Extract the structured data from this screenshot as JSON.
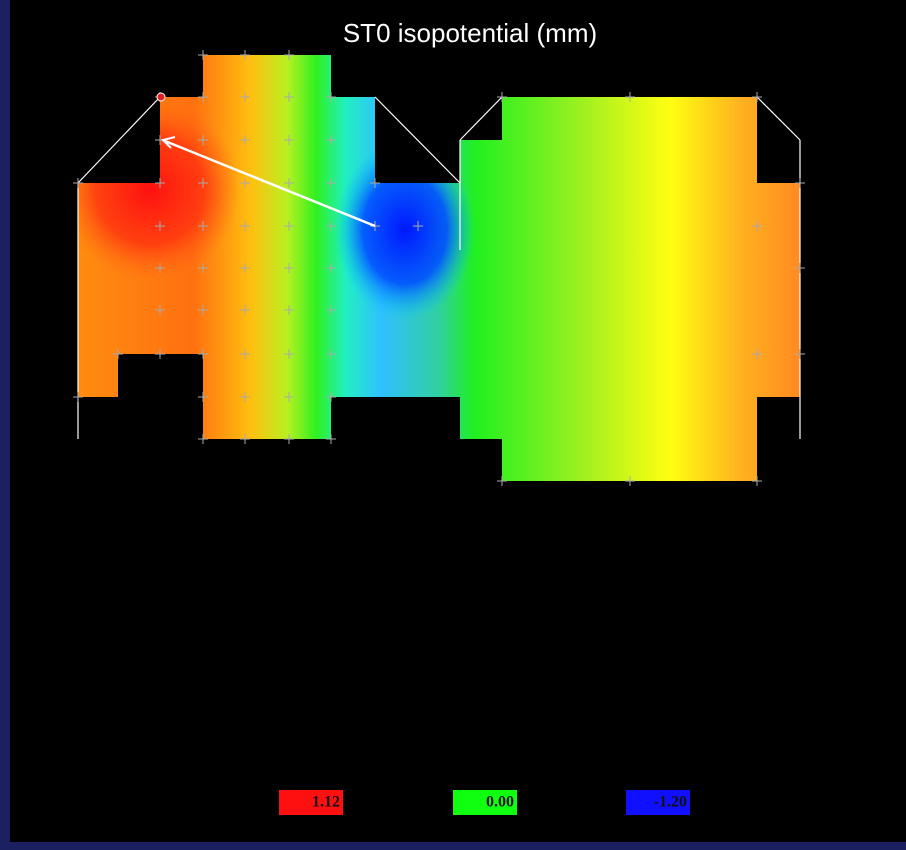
{
  "header": {
    "title": "ST0 isopotential (mm)"
  },
  "legend": [
    {
      "label": "1.12"
    },
    {
      "label": "0.00"
    },
    {
      "label": "-1.20"
    }
  ]
}
